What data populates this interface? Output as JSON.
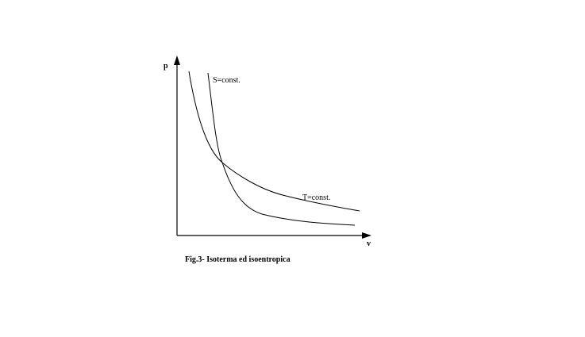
{
  "axes": {
    "y_label": "p",
    "x_label": "v"
  },
  "curves": {
    "isentropic_label": "S=const.",
    "isotherm_label": "T=const."
  },
  "caption": "Fig.3- Isoterma ed isoentropica"
}
